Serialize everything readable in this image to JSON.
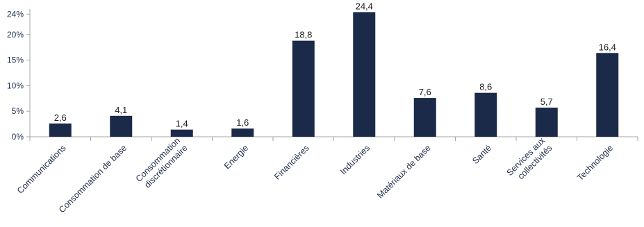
{
  "chart_data": {
    "type": "bar",
    "categories": [
      "Communications",
      "Consommation de base",
      "Consommation discrétionnaire",
      "Energie",
      "Financières",
      "Industries",
      "Matériaux de base",
      "Santé",
      "Services aux collectivités",
      "Technologie"
    ],
    "category_lines": [
      [
        "Communications"
      ],
      [
        "Consommation de base"
      ],
      [
        "Consommation",
        "discrétionnaire"
      ],
      [
        "Energie"
      ],
      [
        "Financières"
      ],
      [
        "Industries"
      ],
      [
        "Matériaux de base"
      ],
      [
        "Santé"
      ],
      [
        "Services aux",
        "collectivités"
      ],
      [
        "Technologie"
      ]
    ],
    "values": [
      2.6,
      4.1,
      1.4,
      1.6,
      18.8,
      24.4,
      7.6,
      8.6,
      5.7,
      16.4
    ],
    "value_labels": [
      "2,6",
      "4,1",
      "1,4",
      "1,6",
      "18,8",
      "24,4",
      "7,6",
      "8,6",
      "5,7",
      "16,4"
    ],
    "yticks": [
      "0%",
      "5%",
      "10%",
      "15%",
      "20%",
      "24%"
    ],
    "ytick_values": [
      0,
      5,
      10,
      15,
      20,
      24
    ],
    "ylim": [
      0,
      25
    ],
    "title": "",
    "xlabel": "",
    "ylabel": "",
    "grid": false,
    "bar_color": "#1b2a48",
    "axis_color": "#a6a6a6"
  }
}
